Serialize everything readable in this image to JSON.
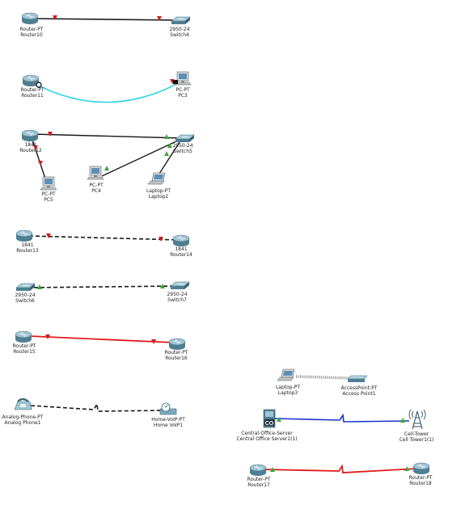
{
  "colors": {
    "ethernet": "#1a1a1a",
    "crossover": "#1a1a1a",
    "serial": "#e11a1a",
    "console": "#33d6e6",
    "phone": "#1a1a1a",
    "coaxial": "#1a33cc",
    "wireless": "#888888",
    "link_down": "#d01c1c",
    "link_up": "#3aa836"
  },
  "devices": {
    "router10": {
      "model": "Router-PT",
      "name": "Router10",
      "icon": "router-icon"
    },
    "switch4": {
      "model": "2950-24",
      "name": "Switch4",
      "icon": "switch-icon"
    },
    "router11": {
      "model": "Router-PT",
      "name": "Router11",
      "icon": "router-icon"
    },
    "pc3": {
      "model": "PC-PT",
      "name": "PC3",
      "icon": "pc-icon"
    },
    "router12": {
      "model": "1841",
      "name": "Router12",
      "icon": "router-icon"
    },
    "switch5": {
      "model": "2950-24",
      "name": "Switch5",
      "icon": "switch-icon"
    },
    "pc5": {
      "model": "PC-PT",
      "name": "PC5",
      "icon": "pc-icon"
    },
    "pc4": {
      "model": "PC-PT",
      "name": "PC4",
      "icon": "pc-icon"
    },
    "laptop2": {
      "model": "Laptop-PT",
      "name": "Laptop2",
      "icon": "laptop-icon"
    },
    "router13": {
      "model": "1841",
      "name": "Router13",
      "icon": "router-icon"
    },
    "router14": {
      "model": "1841",
      "name": "Router14",
      "icon": "router-icon"
    },
    "switch6": {
      "model": "2950-24",
      "name": "Switch6",
      "icon": "switch-icon"
    },
    "switch7": {
      "model": "2950-24",
      "name": "Switch7",
      "icon": "switch-icon"
    },
    "router15": {
      "model": "Router-PT",
      "name": "Router15",
      "icon": "router-icon"
    },
    "router16": {
      "model": "Router-PT",
      "name": "Router16",
      "icon": "router-icon"
    },
    "analogphone1": {
      "model": "Analog-Phone-PT",
      "name": "Analog Phone1",
      "icon": "analog-phone-icon"
    },
    "homevoip1": {
      "model": "Home-VoIP-PT",
      "name": "Home VoIP1",
      "icon": "home-voip-icon"
    },
    "laptop3": {
      "model": "Laptop-PT",
      "name": "Laptop3",
      "icon": "laptop-icon"
    },
    "accesspoint1": {
      "model": "AccessPoint-PT",
      "name": "Access Point1",
      "icon": "access-point-icon"
    },
    "coserver1": {
      "model": "Central-Office-Server",
      "name": "Central Office Server1(1)",
      "icon": "central-office-server-icon"
    },
    "celltower1": {
      "model": "Cell-Tower",
      "name": "Cell Tower1(1)",
      "icon": "cell-tower-icon"
    },
    "router17": {
      "model": "Router-PT",
      "name": "Router17",
      "icon": "router-icon"
    },
    "router18": {
      "model": "Router-PT",
      "name": "Router18",
      "icon": "router-icon"
    }
  },
  "links": [
    {
      "from": "router10",
      "to": "switch4",
      "type": "ethernet",
      "from_state": "down",
      "to_state": "down"
    },
    {
      "from": "router11",
      "to": "pc3",
      "type": "console",
      "from_state": "none",
      "to_state": "down"
    },
    {
      "from": "router12",
      "to": "switch5",
      "type": "ethernet",
      "from_state": "down",
      "to_state": "up"
    },
    {
      "from": "router12",
      "to": "pc5",
      "type": "crossover",
      "from_state": "down",
      "to_state": "down"
    },
    {
      "from": "switch5",
      "to": "pc4",
      "type": "ethernet",
      "from_state": "up",
      "to_state": "up"
    },
    {
      "from": "switch5",
      "to": "laptop2",
      "type": "ethernet",
      "from_state": "up",
      "to_state": "up"
    },
    {
      "from": "router13",
      "to": "router14",
      "type": "crossover-dashed",
      "from_state": "down",
      "to_state": "down"
    },
    {
      "from": "switch6",
      "to": "switch7",
      "type": "crossover-dashed",
      "from_state": "up",
      "to_state": "up"
    },
    {
      "from": "router15",
      "to": "router16",
      "type": "serial",
      "from_state": "down",
      "to_state": "down"
    },
    {
      "from": "analogphone1",
      "to": "homevoip1",
      "type": "phone",
      "from_state": "none",
      "to_state": "none"
    },
    {
      "from": "laptop3",
      "to": "accesspoint1",
      "type": "wireless",
      "from_state": "none",
      "to_state": "none"
    },
    {
      "from": "coserver1",
      "to": "celltower1",
      "type": "coaxial",
      "from_state": "up",
      "to_state": "up"
    },
    {
      "from": "router17",
      "to": "router18",
      "type": "serial-zigzag",
      "from_state": "up",
      "to_state": "up"
    }
  ]
}
